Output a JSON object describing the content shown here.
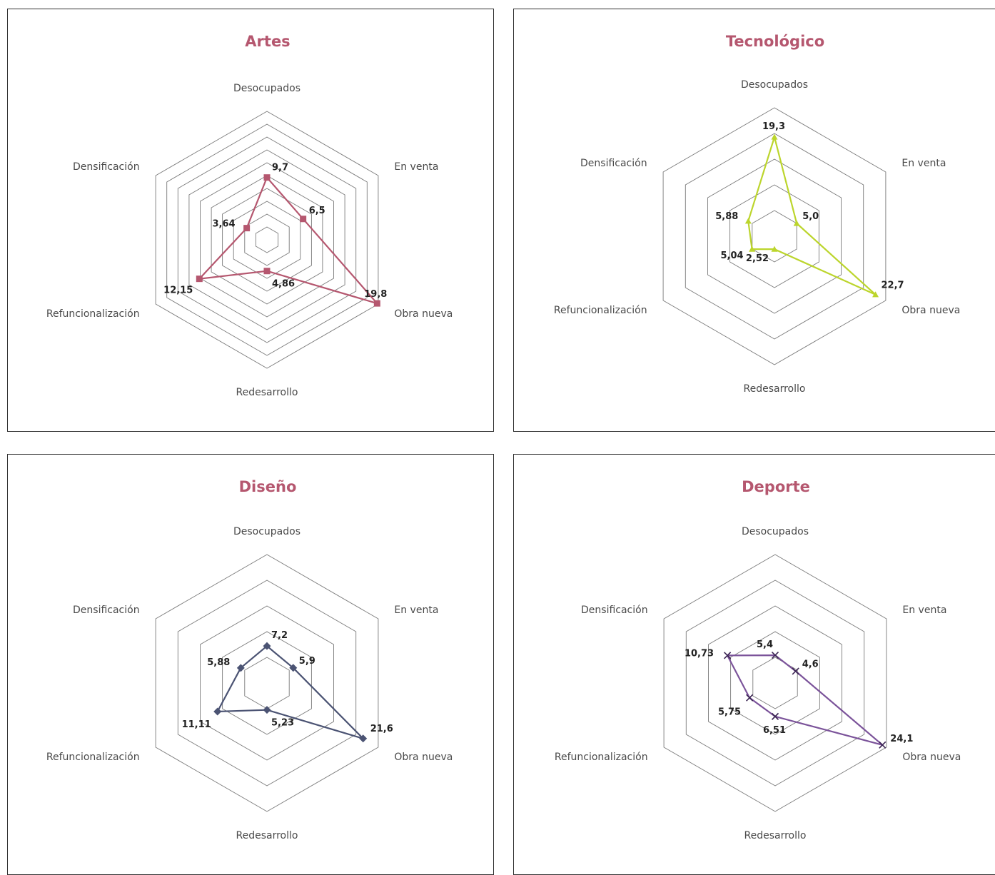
{
  "chart_data": [
    {
      "type": "radar",
      "title": "Artes",
      "axes": [
        "Desocupados",
        "En venta",
        "Obra nueva",
        "Redesarrollo",
        "Refuncionalización",
        "Densificación"
      ],
      "values": [
        9.7,
        6.5,
        19.8,
        4.86,
        12.15,
        3.64
      ],
      "value_labels": [
        "9,7",
        "6,5",
        "19,8",
        "4,86",
        "12,15",
        "3,64"
      ],
      "rmax": 20,
      "rings": 10,
      "color": "#b5576f",
      "marker": "square"
    },
    {
      "type": "radar",
      "title": "Tecnológico",
      "axes": [
        "Desocupados",
        "En venta",
        "Obra nueva",
        "Redesarrollo",
        "Refuncionalización",
        "Densificación"
      ],
      "values": [
        19.3,
        5.0,
        22.7,
        2.52,
        5.04,
        5.88
      ],
      "value_labels": [
        "19,3",
        "5,0",
        "22,7",
        "2,52",
        "5,04",
        "5,88"
      ],
      "rmax": 25,
      "rings": 5,
      "color": "#bcd52c",
      "marker": "triangle"
    },
    {
      "type": "radar",
      "title": "Diseño",
      "axes": [
        "Desocupados",
        "En venta",
        "Obra nueva",
        "Redesarrollo",
        "Refuncionalización",
        "Densificación"
      ],
      "values": [
        7.2,
        5.9,
        21.6,
        5.23,
        11.11,
        5.88
      ],
      "value_labels": [
        "7,2",
        "5,9",
        "21,6",
        "5,23",
        "11,11",
        "5,88"
      ],
      "rmax": 25,
      "rings": 5,
      "color": "#4b5373",
      "marker": "diamond"
    },
    {
      "type": "radar",
      "title": "Deporte",
      "axes": [
        "Desocupados",
        "En venta",
        "Obra nueva",
        "Redesarrollo",
        "Refuncionalización",
        "Densificación"
      ],
      "values": [
        5.4,
        4.6,
        24.1,
        6.51,
        5.75,
        10.73
      ],
      "value_labels": [
        "5,4",
        "4,6",
        "24,1",
        "6,51",
        "5,75",
        "10,73"
      ],
      "rmax": 25,
      "rings": 5,
      "color": "#7b539a",
      "marker": "x"
    }
  ]
}
